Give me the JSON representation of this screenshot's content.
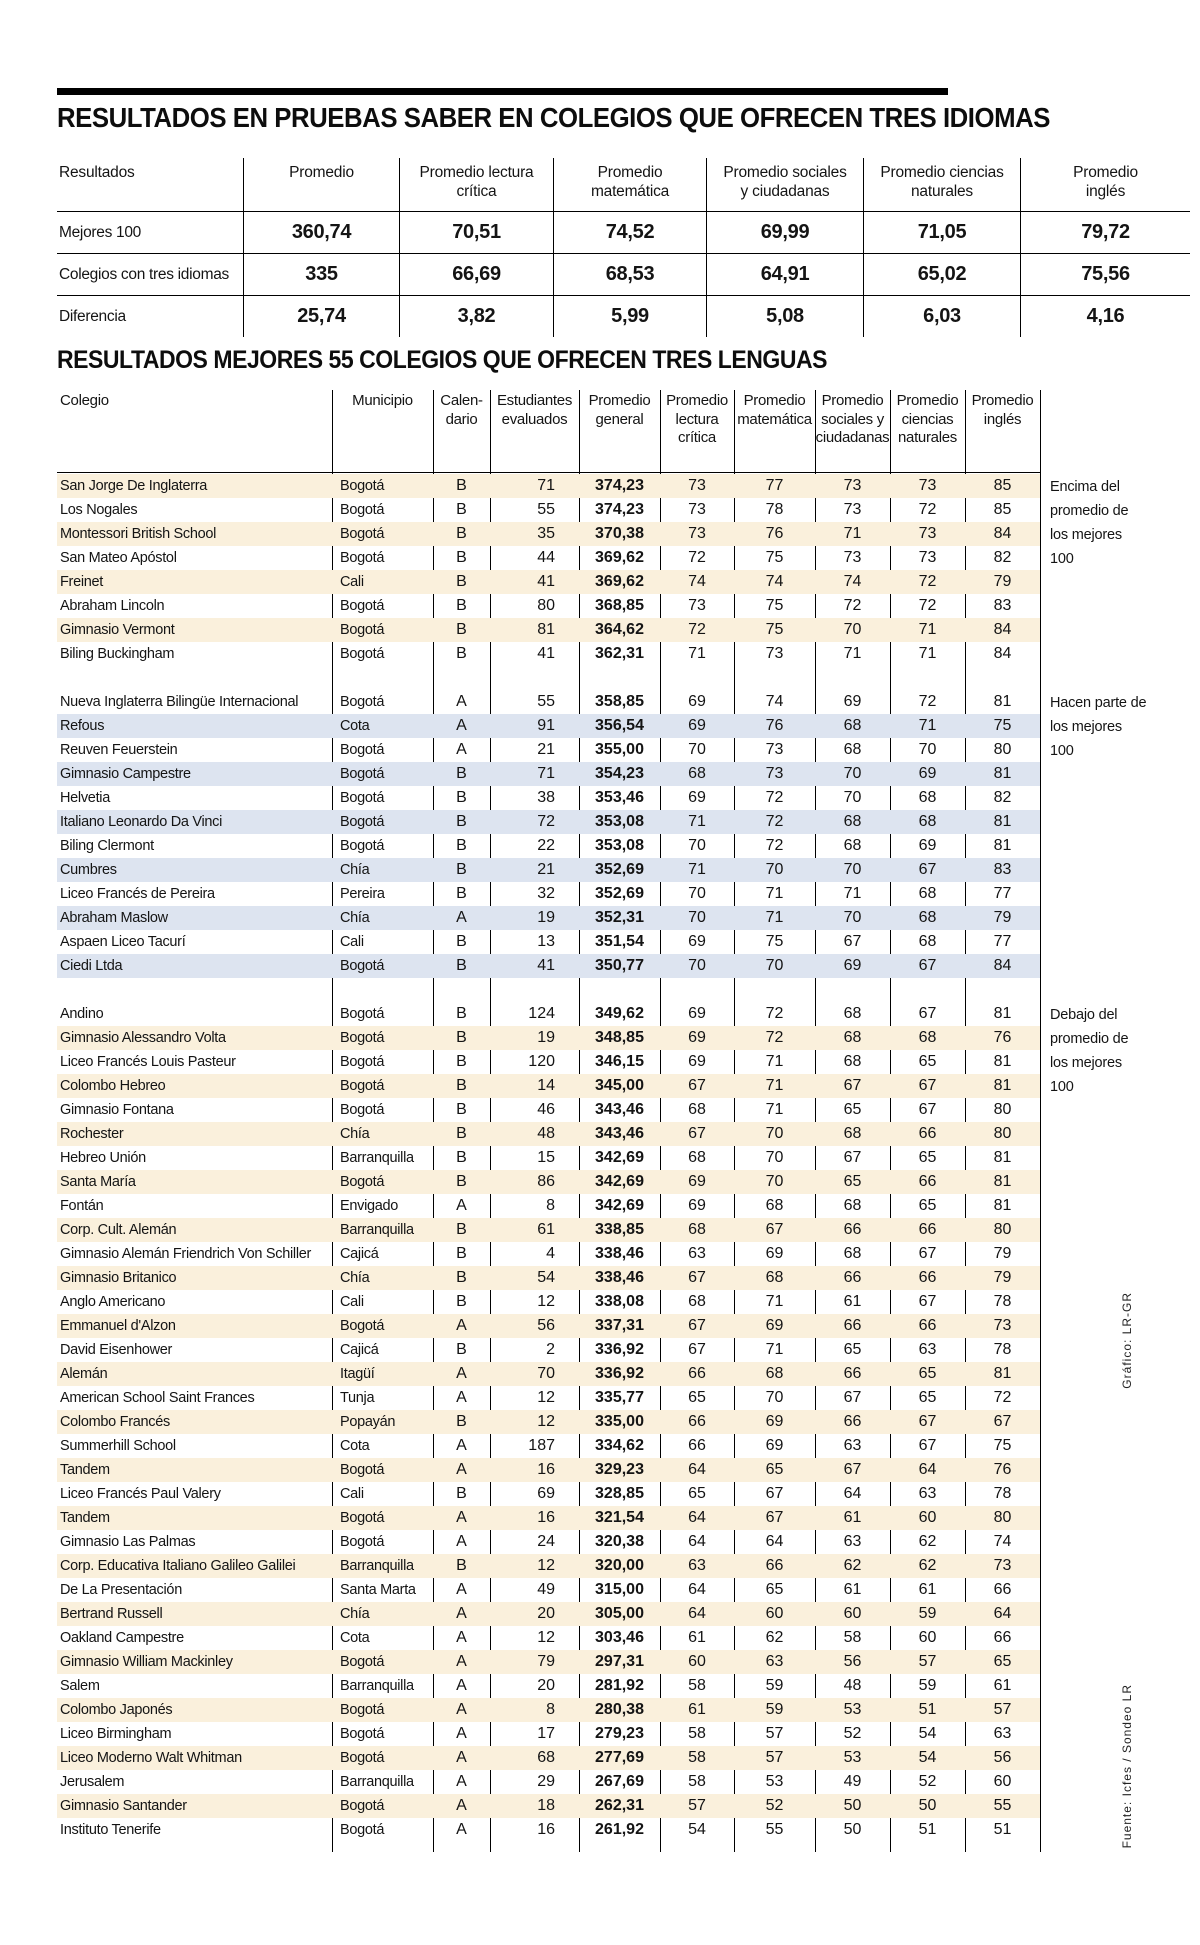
{
  "title1": "RESULTADOS EN PRUEBAS SABER EN COLEGIOS QUE OFRECEN TRES IDIOMAS",
  "title2": "RESULTADOS MEJORES 55 COLEGIOS QUE OFRECEN TRES LENGUAS",
  "colors": {
    "cream": "#faf0dc",
    "blue": "#dde4f0"
  },
  "summary_table": {
    "headers": [
      "Resultados",
      "Promedio",
      "Promedio lectura\ncrítica",
      "Promedio\nmatemática",
      "Promedio sociales\ny ciudadanas",
      "Promedio ciencias\nnaturales",
      "Promedio\ninglés"
    ],
    "rows": [
      {
        "label": "Mejores 100",
        "values": [
          "360,74",
          "70,51",
          "74,52",
          "69,99",
          "71,05",
          "79,72"
        ]
      },
      {
        "label": "Colegios con tres idiomas",
        "values": [
          "335",
          "66,69",
          "68,53",
          "64,91",
          "65,02",
          "75,56"
        ]
      },
      {
        "label": "Diferencia",
        "values": [
          "25,74",
          "3,82",
          "5,99",
          "5,08",
          "6,03",
          "4,16"
        ]
      }
    ]
  },
  "main_table": {
    "headers": [
      "Colegio",
      "Municipio",
      "Calen-\ndario",
      "Estudiantes\nevaluados",
      "Promedio\ngeneral",
      "Promedio\nlectura\ncrítica",
      "Promedio\nmatemática",
      "Promedio\nsociales y\nciudadanas",
      "Promedio\nciencias\nnaturales",
      "Promedio\ninglés"
    ],
    "groups": [
      {
        "annotation": "Encima del promedio de los mejores 100",
        "stripe": "cream",
        "stripe_phase": 0,
        "rows": [
          [
            "San Jorge De Inglaterra",
            "Bogotá",
            "B",
            "71",
            "374,23",
            "73",
            "77",
            "73",
            "73",
            "85"
          ],
          [
            "Los Nogales",
            "Bogotá",
            "B",
            "55",
            "374,23",
            "73",
            "78",
            "73",
            "72",
            "85"
          ],
          [
            "Montessori British School",
            "Bogotá",
            "B",
            "35",
            "370,38",
            "73",
            "76",
            "71",
            "73",
            "84"
          ],
          [
            "San Mateo Apóstol",
            "Bogotá",
            "B",
            "44",
            "369,62",
            "72",
            "75",
            "73",
            "73",
            "82"
          ],
          [
            "Freinet",
            "Cali",
            "B",
            "41",
            "369,62",
            "74",
            "74",
            "74",
            "72",
            "79"
          ],
          [
            "Abraham Lincoln",
            "Bogotá",
            "B",
            "80",
            "368,85",
            "73",
            "75",
            "72",
            "72",
            "83"
          ],
          [
            "Gimnasio Vermont",
            "Bogotá",
            "B",
            "81",
            "364,62",
            "72",
            "75",
            "70",
            "71",
            "84"
          ],
          [
            "Biling Buckingham",
            "Bogotá",
            "B",
            "41",
            "362,31",
            "71",
            "73",
            "71",
            "71",
            "84"
          ]
        ]
      },
      {
        "annotation": "Hacen parte de los mejores 100",
        "stripe": "blue",
        "stripe_phase": 1,
        "rows": [
          [
            "Nueva Inglaterra Bilingüe Internacional",
            "Bogotá",
            "A",
            "55",
            "358,85",
            "69",
            "74",
            "69",
            "72",
            "81"
          ],
          [
            "Refous",
            "Cota",
            "A",
            "91",
            "356,54",
            "69",
            "76",
            "68",
            "71",
            "75"
          ],
          [
            "Reuven Feuerstein",
            "Bogotá",
            "A",
            "21",
            "355,00",
            "70",
            "73",
            "68",
            "70",
            "80"
          ],
          [
            "Gimnasio Campestre",
            "Bogotá",
            "B",
            "71",
            "354,23",
            "68",
            "73",
            "70",
            "69",
            "81"
          ],
          [
            "Helvetia",
            "Bogotá",
            "B",
            "38",
            "353,46",
            "69",
            "72",
            "70",
            "68",
            "82"
          ],
          [
            "Italiano Leonardo Da Vinci",
            "Bogotá",
            "B",
            "72",
            "353,08",
            "71",
            "72",
            "68",
            "68",
            "81"
          ],
          [
            "Biling Clermont",
            "Bogotá",
            "B",
            "22",
            "353,08",
            "70",
            "72",
            "68",
            "69",
            "81"
          ],
          [
            "Cumbres",
            "Chía",
            "B",
            "21",
            "352,69",
            "71",
            "70",
            "70",
            "67",
            "83"
          ],
          [
            "Liceo Francés de Pereira",
            "Pereira",
            "B",
            "32",
            "352,69",
            "70",
            "71",
            "71",
            "68",
            "77"
          ],
          [
            "Abraham Maslow",
            "Chía",
            "A",
            "19",
            "352,31",
            "70",
            "71",
            "70",
            "68",
            "79"
          ],
          [
            "Aspaen Liceo Tacurí",
            "Cali",
            "B",
            "13",
            "351,54",
            "69",
            "75",
            "67",
            "68",
            "77"
          ],
          [
            "Ciedi Ltda",
            "Bogotá",
            "B",
            "41",
            "350,77",
            "70",
            "70",
            "69",
            "67",
            "84"
          ]
        ]
      },
      {
        "annotation": "Debajo del promedio de los mejores 100",
        "stripe": "cream",
        "stripe_phase": 1,
        "rows": [
          [
            "Andino",
            "Bogotá",
            "B",
            "124",
            "349,62",
            "69",
            "72",
            "68",
            "67",
            "81"
          ],
          [
            "Gimnasio Alessandro Volta",
            "Bogotá",
            "B",
            "19",
            "348,85",
            "69",
            "72",
            "68",
            "68",
            "76"
          ],
          [
            "Liceo Francés Louis Pasteur",
            "Bogotá",
            "B",
            "120",
            "346,15",
            "69",
            "71",
            "68",
            "65",
            "81"
          ],
          [
            "Colombo Hebreo",
            "Bogotá",
            "B",
            "14",
            "345,00",
            "67",
            "71",
            "67",
            "67",
            "81"
          ],
          [
            "Gimnasio Fontana",
            "Bogotá",
            "B",
            "46",
            "343,46",
            "68",
            "71",
            "65",
            "67",
            "80"
          ],
          [
            "Rochester",
            "Chía",
            "B",
            "48",
            "343,46",
            "67",
            "70",
            "68",
            "66",
            "80"
          ],
          [
            "Hebreo Unión",
            "Barranquilla",
            "B",
            "15",
            "342,69",
            "68",
            "70",
            "67",
            "65",
            "81"
          ],
          [
            "Santa María",
            "Bogotá",
            "B",
            "86",
            "342,69",
            "69",
            "70",
            "65",
            "66",
            "81"
          ],
          [
            "Fontán",
            "Envigado",
            "A",
            "8",
            "342,69",
            "69",
            "68",
            "68",
            "65",
            "81"
          ],
          [
            "Corp. Cult. Alemán",
            "Barranquilla",
            "B",
            "61",
            "338,85",
            "68",
            "67",
            "66",
            "66",
            "80"
          ],
          [
            "Gimnasio Alemán Friendrich Von Schiller",
            "Cajicá",
            "B",
            "4",
            "338,46",
            "63",
            "69",
            "68",
            "67",
            "79"
          ],
          [
            "Gimnasio Britanico",
            "Chía",
            "B",
            "54",
            "338,46",
            "67",
            "68",
            "66",
            "66",
            "79"
          ],
          [
            "Anglo Americano",
            "Cali",
            "B",
            "12",
            "338,08",
            "68",
            "71",
            "61",
            "67",
            "78"
          ],
          [
            "Emmanuel d'Alzon",
            "Bogotá",
            "A",
            "56",
            "337,31",
            "67",
            "69",
            "66",
            "66",
            "73"
          ],
          [
            "David Eisenhower",
            "Cajicá",
            "B",
            "2",
            "336,92",
            "67",
            "71",
            "65",
            "63",
            "78"
          ],
          [
            "Alemán",
            "Itagüí",
            "A",
            "70",
            "336,92",
            "66",
            "68",
            "66",
            "65",
            "81"
          ],
          [
            "American School Saint Frances",
            "Tunja",
            "A",
            "12",
            "335,77",
            "65",
            "70",
            "67",
            "65",
            "72"
          ],
          [
            "Colombo Francés",
            "Popayán",
            "B",
            "12",
            "335,00",
            "66",
            "69",
            "66",
            "67",
            "67"
          ],
          [
            "Summerhill School",
            "Cota",
            "A",
            "187",
            "334,62",
            "66",
            "69",
            "63",
            "67",
            "75"
          ],
          [
            "Tandem",
            "Bogotá",
            "A",
            "16",
            "329,23",
            "64",
            "65",
            "67",
            "64",
            "76"
          ],
          [
            "Liceo Francés Paul Valery",
            "Cali",
            "B",
            "69",
            "328,85",
            "65",
            "67",
            "64",
            "63",
            "78"
          ],
          [
            "Tandem",
            "Bogotá",
            "A",
            "16",
            "321,54",
            "64",
            "67",
            "61",
            "60",
            "80"
          ],
          [
            "Gimnasio Las Palmas",
            "Bogotá",
            "A",
            "24",
            "320,38",
            "64",
            "64",
            "63",
            "62",
            "74"
          ],
          [
            "Corp. Educativa Italiano Galileo Galilei",
            "Barranquilla",
            "B",
            "12",
            "320,00",
            "63",
            "66",
            "62",
            "62",
            "73"
          ],
          [
            "De La Presentación",
            "Santa Marta",
            "A",
            "49",
            "315,00",
            "64",
            "65",
            "61",
            "61",
            "66"
          ],
          [
            "Bertrand Russell",
            "Chía",
            "A",
            "20",
            "305,00",
            "64",
            "60",
            "60",
            "59",
            "64"
          ],
          [
            "Oakland Campestre",
            "Cota",
            "A",
            "12",
            "303,46",
            "61",
            "62",
            "58",
            "60",
            "66"
          ],
          [
            "Gimnasio William Mackinley",
            "Bogotá",
            "A",
            "79",
            "297,31",
            "60",
            "63",
            "56",
            "57",
            "65"
          ],
          [
            "Salem",
            "Barranquilla",
            "A",
            "20",
            "281,92",
            "58",
            "59",
            "48",
            "59",
            "61"
          ],
          [
            "Colombo Japonés",
            "Bogotá",
            "A",
            "8",
            "280,38",
            "61",
            "59",
            "53",
            "51",
            "57"
          ],
          [
            "Liceo Birmingham",
            "Bogotá",
            "A",
            "17",
            "279,23",
            "58",
            "57",
            "52",
            "54",
            "63"
          ],
          [
            "Liceo Moderno Walt Whitman",
            "Bogotá",
            "A",
            "68",
            "277,69",
            "58",
            "57",
            "53",
            "54",
            "56"
          ],
          [
            "Jerusalem",
            "Barranquilla",
            "A",
            "29",
            "267,69",
            "58",
            "53",
            "49",
            "52",
            "60"
          ],
          [
            "Gimnasio Santander",
            "Bogotá",
            "A",
            "18",
            "262,31",
            "57",
            "52",
            "50",
            "50",
            "55"
          ],
          [
            "Instituto Tenerife",
            "Bogotá",
            "A",
            "16",
            "261,92",
            "54",
            "55",
            "50",
            "51",
            "51"
          ]
        ]
      }
    ]
  },
  "credits": {
    "graphic": "Gráfico: LR-GR",
    "source": "Fuente: Icfes / Sondeo LR"
  }
}
